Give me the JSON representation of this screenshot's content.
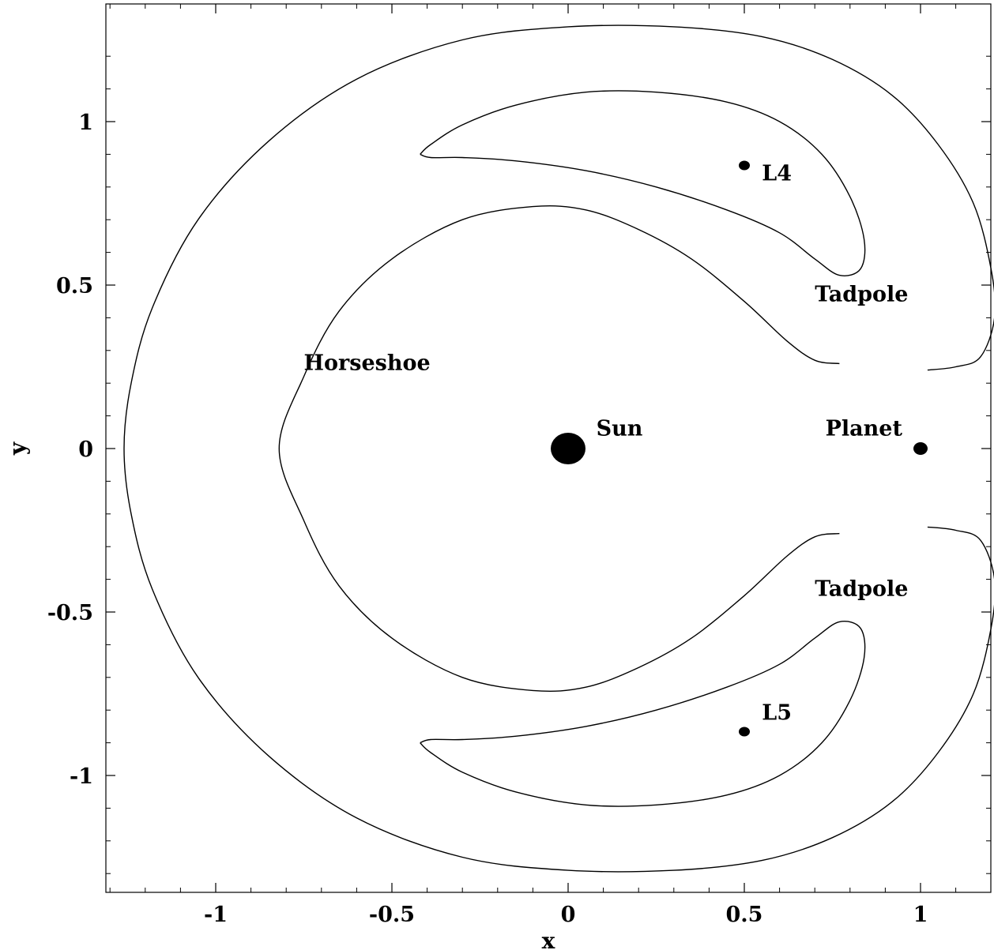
{
  "chart_data": {
    "type": "line",
    "title": "",
    "xlabel": "x",
    "ylabel": "y",
    "xlim": [
      -1.3,
      1.2
    ],
    "ylim": [
      -1.3,
      1.3
    ],
    "grid": false,
    "x_ticks": [
      {
        "value": -1,
        "label": "-1"
      },
      {
        "value": -0.5,
        "label": "-0.5"
      },
      {
        "value": 0,
        "label": "0"
      },
      {
        "value": 0.5,
        "label": "0.5"
      },
      {
        "value": 1,
        "label": "1"
      }
    ],
    "y_ticks": [
      {
        "value": 1,
        "label": "1"
      },
      {
        "value": 0.5,
        "label": "0.5"
      },
      {
        "value": 0,
        "label": "0"
      },
      {
        "value": -0.5,
        "label": "-0.5"
      },
      {
        "value": -1,
        "label": "-1"
      }
    ],
    "series": [
      {
        "values": [
          [
            1.02,
            0.24
          ],
          [
            1.1,
            0.25
          ],
          [
            1.17,
            0.28
          ],
          [
            1.21,
            0.4
          ],
          [
            1.2,
            0.55
          ],
          [
            1.15,
            0.75
          ],
          [
            1.05,
            0.93
          ],
          [
            0.92,
            1.08
          ],
          [
            0.75,
            1.19
          ],
          [
            0.55,
            1.26
          ],
          [
            0.3,
            1.29
          ],
          [
            0.0,
            1.29
          ],
          [
            -0.3,
            1.25
          ],
          [
            -0.6,
            1.13
          ],
          [
            -0.85,
            0.94
          ],
          [
            -1.05,
            0.7
          ],
          [
            -1.18,
            0.43
          ],
          [
            -1.24,
            0.2
          ],
          [
            -1.26,
            0.0
          ],
          [
            -1.24,
            -0.2
          ],
          [
            -1.18,
            -0.43
          ],
          [
            -1.05,
            -0.7
          ],
          [
            -0.85,
            -0.94
          ],
          [
            -0.6,
            -1.13
          ],
          [
            -0.3,
            -1.25
          ],
          [
            0.0,
            -1.29
          ],
          [
            0.3,
            -1.29
          ],
          [
            0.55,
            -1.26
          ],
          [
            0.75,
            -1.19
          ],
          [
            0.92,
            -1.08
          ],
          [
            1.05,
            -0.93
          ],
          [
            1.15,
            -0.75
          ],
          [
            1.2,
            -0.55
          ],
          [
            1.21,
            -0.4
          ],
          [
            1.17,
            -0.28
          ],
          [
            1.1,
            -0.25
          ],
          [
            1.02,
            -0.24
          ]
        ]
      },
      {
        "values": [
          [
            0.77,
            0.26
          ],
          [
            0.7,
            0.27
          ],
          [
            0.62,
            0.33
          ],
          [
            0.5,
            0.45
          ],
          [
            0.35,
            0.58
          ],
          [
            0.2,
            0.67
          ],
          [
            0.05,
            0.73
          ],
          [
            -0.1,
            0.74
          ],
          [
            -0.3,
            0.7
          ],
          [
            -0.5,
            0.58
          ],
          [
            -0.65,
            0.42
          ],
          [
            -0.75,
            0.22
          ],
          [
            -0.82,
            0.0
          ],
          [
            -0.75,
            -0.22
          ],
          [
            -0.65,
            -0.42
          ],
          [
            -0.5,
            -0.58
          ],
          [
            -0.3,
            -0.7
          ],
          [
            -0.1,
            -0.74
          ],
          [
            0.05,
            -0.73
          ],
          [
            0.2,
            -0.67
          ],
          [
            0.35,
            -0.58
          ],
          [
            0.5,
            -0.45
          ],
          [
            0.62,
            -0.33
          ],
          [
            0.7,
            -0.27
          ],
          [
            0.77,
            -0.26
          ]
        ]
      },
      {
        "values": [
          [
            -0.42,
            0.9
          ],
          [
            -0.39,
            0.93
          ],
          [
            -0.3,
            0.99
          ],
          [
            -0.15,
            1.05
          ],
          [
            0.05,
            1.09
          ],
          [
            0.25,
            1.09
          ],
          [
            0.45,
            1.06
          ],
          [
            0.6,
            1.0
          ],
          [
            0.72,
            0.9
          ],
          [
            0.8,
            0.77
          ],
          [
            0.84,
            0.64
          ],
          [
            0.83,
            0.55
          ],
          [
            0.77,
            0.53
          ],
          [
            0.7,
            0.58
          ],
          [
            0.6,
            0.66
          ],
          [
            0.45,
            0.73
          ],
          [
            0.25,
            0.8
          ],
          [
            0.05,
            0.85
          ],
          [
            -0.15,
            0.88
          ],
          [
            -0.3,
            0.89
          ],
          [
            -0.39,
            0.89
          ],
          [
            -0.42,
            0.9
          ]
        ]
      },
      {
        "values": [
          [
            -0.42,
            -0.9
          ],
          [
            -0.39,
            -0.93
          ],
          [
            -0.3,
            -0.99
          ],
          [
            -0.15,
            -1.05
          ],
          [
            0.05,
            -1.09
          ],
          [
            0.25,
            -1.09
          ],
          [
            0.45,
            -1.06
          ],
          [
            0.6,
            -1.0
          ],
          [
            0.72,
            -0.9
          ],
          [
            0.8,
            -0.77
          ],
          [
            0.84,
            -0.64
          ],
          [
            0.83,
            -0.55
          ],
          [
            0.77,
            -0.53
          ],
          [
            0.7,
            -0.58
          ],
          [
            0.6,
            -0.66
          ],
          [
            0.45,
            -0.73
          ],
          [
            0.25,
            -0.8
          ],
          [
            0.05,
            -0.85
          ],
          [
            -0.15,
            -0.88
          ],
          [
            -0.3,
            -0.89
          ],
          [
            -0.39,
            -0.89
          ],
          [
            -0.42,
            -0.9
          ]
        ]
      }
    ],
    "points": [
      {
        "name": "sun-point",
        "x": 0,
        "y": 0,
        "size": "large"
      },
      {
        "name": "planet-point",
        "x": 1,
        "y": 0,
        "size": "medium"
      },
      {
        "name": "l4-point",
        "x": 0.5,
        "y": 0.866,
        "size": "small"
      },
      {
        "name": "l5-point",
        "x": 0.5,
        "y": -0.866,
        "size": "small"
      }
    ],
    "annotations": [
      {
        "name": "sun-label",
        "text": "Sun",
        "x": 0.08,
        "y": 0.04
      },
      {
        "name": "planet-label",
        "text": "Planet",
        "x": 0.73,
        "y": 0.04
      },
      {
        "name": "l4-label",
        "text": "L4",
        "x": 0.55,
        "y": 0.82
      },
      {
        "name": "l5-label",
        "text": "L5",
        "x": 0.55,
        "y": -0.83
      },
      {
        "name": "tadpole-upper-label",
        "text": "Tadpole",
        "x": 0.7,
        "y": 0.45
      },
      {
        "name": "tadpole-lower-label",
        "text": "Tadpole",
        "x": 0.7,
        "y": -0.45
      },
      {
        "name": "horseshoe-label",
        "text": "Horseshoe",
        "x": -0.75,
        "y": 0.24
      }
    ],
    "colors": {
      "line": "#000000",
      "marker": "#000000",
      "background": "#ffffff"
    }
  }
}
